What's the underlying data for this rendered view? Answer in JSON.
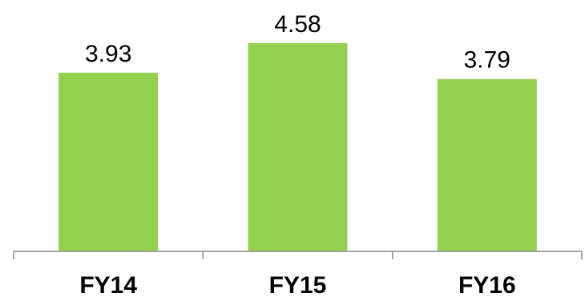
{
  "chart_data": {
    "type": "bar",
    "title": "",
    "xlabel": "",
    "ylabel": "",
    "categories": [
      "FY14",
      "FY15",
      "FY16"
    ],
    "values": [
      3.93,
      4.58,
      3.79
    ],
    "value_labels": [
      "3.93",
      "4.58",
      "3.79"
    ],
    "ylim": [
      0,
      5.0
    ],
    "grid": false,
    "legend": "none",
    "colors": {
      "bar": "#92D050",
      "axis": "#8C8C8C",
      "text": "#000000"
    }
  }
}
